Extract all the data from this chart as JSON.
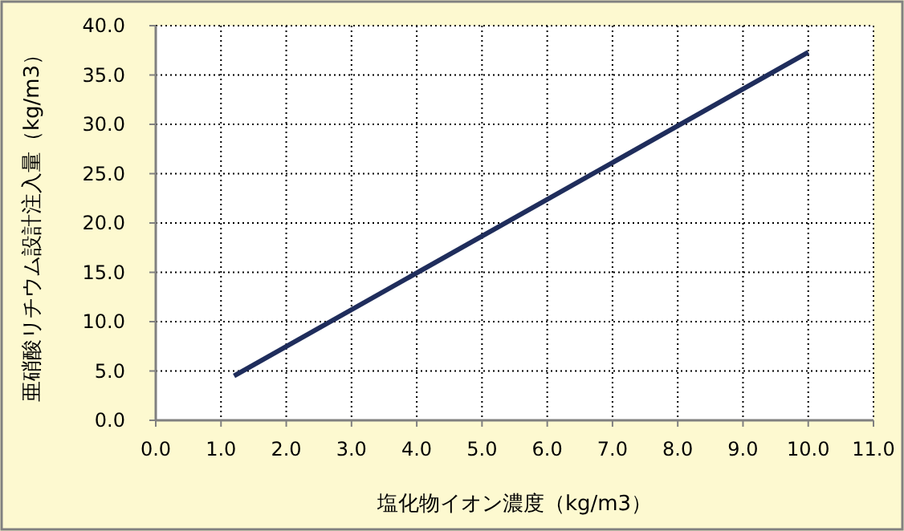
{
  "chart_data": {
    "type": "line",
    "xlabel": "塩化物イオン濃度（kg/m3）",
    "ylabel": "亜硝酸リチウム設計注入量（kg/m3）",
    "x": [
      1.2,
      10.0
    ],
    "series": [
      {
        "color": "#1f2d5c",
        "values": [
          4.5,
          37.3
        ]
      }
    ],
    "xlim": [
      0,
      11
    ],
    "ylim": [
      0,
      40
    ],
    "xticks": [
      {
        "value": 0,
        "label": "0.0"
      },
      {
        "value": 1,
        "label": "1.0"
      },
      {
        "value": 2,
        "label": "2.0"
      },
      {
        "value": 3,
        "label": "3.0"
      },
      {
        "value": 4,
        "label": "4.0"
      },
      {
        "value": 5,
        "label": "5.0"
      },
      {
        "value": 6,
        "label": "6.0"
      },
      {
        "value": 7,
        "label": "7.0"
      },
      {
        "value": 8,
        "label": "8.0"
      },
      {
        "value": 9,
        "label": "9.0"
      },
      {
        "value": 10,
        "label": "10.0"
      },
      {
        "value": 11,
        "label": "11.0"
      }
    ],
    "yticks": [
      {
        "value": 0,
        "label": "0.0"
      },
      {
        "value": 5,
        "label": "5.0"
      },
      {
        "value": 10,
        "label": "10.0"
      },
      {
        "value": 15,
        "label": "15.0"
      },
      {
        "value": 20,
        "label": "20.0"
      },
      {
        "value": 25,
        "label": "25.0"
      },
      {
        "value": 30,
        "label": "30.0"
      },
      {
        "value": 35,
        "label": "35.0"
      },
      {
        "value": 40,
        "label": "40.0"
      }
    ],
    "grid": true,
    "line_style": "solid",
    "marker": "none"
  }
}
